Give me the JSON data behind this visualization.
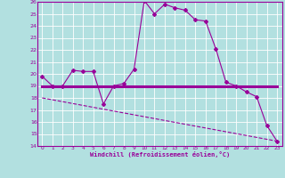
{
  "xlabel": "Windchill (Refroidissement éolien,°C)",
  "xlim": [
    -0.5,
    23.5
  ],
  "ylim": [
    14,
    26
  ],
  "yticks": [
    14,
    15,
    16,
    17,
    18,
    19,
    20,
    21,
    22,
    23,
    24,
    25,
    26
  ],
  "xticks": [
    0,
    1,
    2,
    3,
    4,
    5,
    6,
    7,
    8,
    9,
    10,
    11,
    12,
    13,
    14,
    15,
    16,
    17,
    18,
    19,
    20,
    21,
    22,
    23
  ],
  "bg_color": "#b2e0e0",
  "line_color": "#990099",
  "grid_color": "#ffffff",
  "line1_x": [
    0,
    1,
    2,
    3,
    4,
    5,
    6,
    7,
    8,
    9,
    10,
    11,
    12,
    13,
    14,
    15,
    16,
    17,
    18,
    19,
    20,
    21,
    22,
    23
  ],
  "line1_y": [
    19.8,
    19.0,
    19.0,
    20.3,
    20.2,
    20.2,
    17.5,
    19.0,
    19.2,
    20.4,
    26.1,
    25.0,
    25.8,
    25.5,
    25.3,
    24.5,
    24.4,
    22.1,
    19.3,
    19.0,
    18.5,
    18.1,
    15.7,
    14.4
  ],
  "line2_x": [
    0,
    2,
    6,
    19,
    23
  ],
  "line2_y": [
    19.0,
    19.0,
    19.0,
    19.0,
    19.0
  ],
  "line3_x": [
    0,
    23
  ],
  "line3_y": [
    18.0,
    14.4
  ]
}
